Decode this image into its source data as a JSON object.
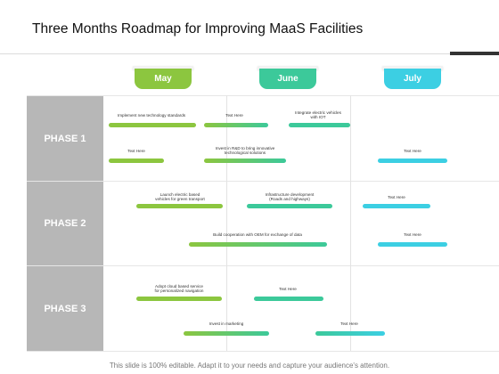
{
  "title": "Three Months Roadmap for Improving MaaS Facilities",
  "footer": "This slide is 100% editable. Adapt it to your needs and capture your audience's attention.",
  "colors": {
    "green": "#8cc63f",
    "teal": "#3cc99a",
    "cyan": "#3ccfe3",
    "phase_bg": "#b7b7b7"
  },
  "months": [
    {
      "label": "May",
      "color": "#8cc63f"
    },
    {
      "label": "June",
      "color": "#3cc99a"
    },
    {
      "label": "July",
      "color": "#3ccfe3"
    }
  ],
  "phases": [
    {
      "label": "PHASE 1"
    },
    {
      "label": "PHASE 2"
    },
    {
      "label": "PHASE 3"
    }
  ],
  "tasks": [
    {
      "label": "Implement new technology standards"
    },
    {
      "label": "Text Here"
    },
    {
      "label": "Integrate electric vehicles\nwith IOT"
    },
    {
      "label": "Text Here"
    },
    {
      "label": "Invest in R&D to bring innovative\ntechnological solutions"
    },
    {
      "label": "Text Here"
    },
    {
      "label": "Launch electric based\nvehicles for green transport"
    },
    {
      "label": "Infrastructure development\n(Roads and highways)"
    },
    {
      "label": "Text Here"
    },
    {
      "label": "Build cooperation with OEM for exchange of data"
    },
    {
      "label": "Text Here"
    },
    {
      "label": "Adopt cloud based service\nfor personalized navigation"
    },
    {
      "label": "Text Here"
    },
    {
      "label": "Invest in marketing"
    },
    {
      "label": "Text Here"
    }
  ]
}
